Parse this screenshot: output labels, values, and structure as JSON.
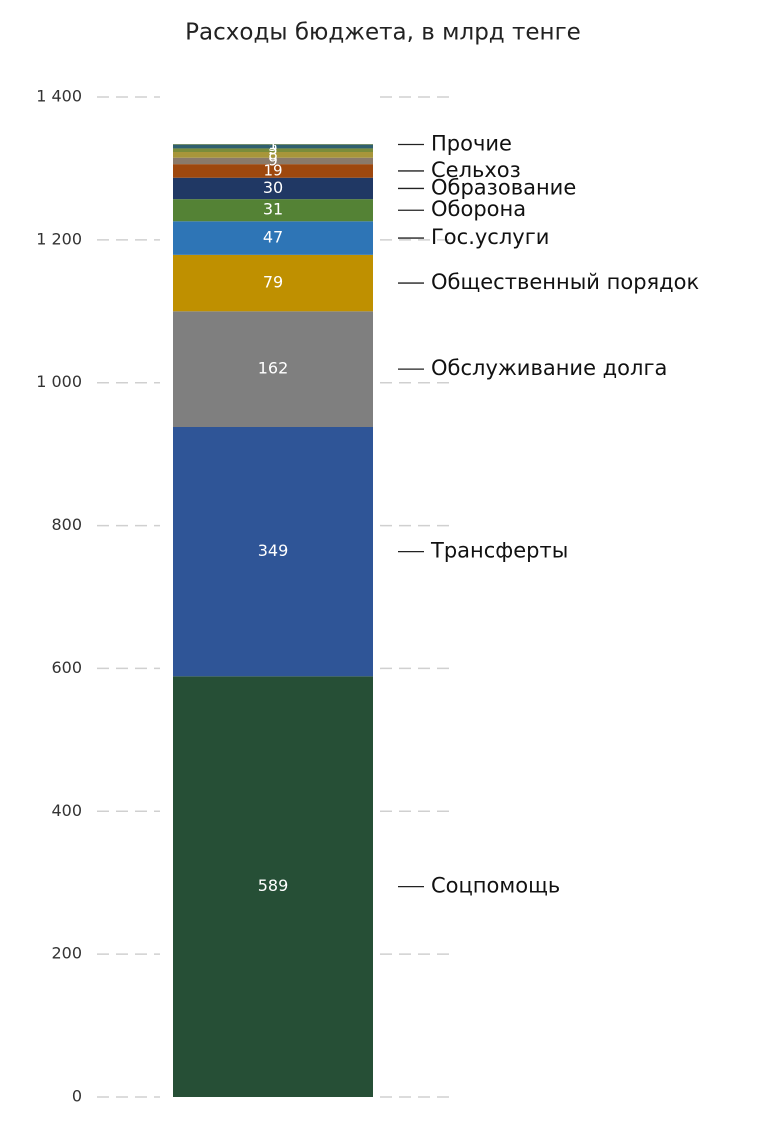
{
  "chart_data": {
    "type": "stacked-bar",
    "title": "Расходы бюджета, в млрд тенге",
    "ylim": [
      0,
      1400
    ],
    "yticks": [
      0,
      200,
      400,
      600,
      800,
      {
        "value": 1000,
        "label": "1 000"
      },
      {
        "value": 1200,
        "label": "1 200"
      },
      {
        "value": 1400,
        "label": "1 400"
      }
    ],
    "grid": true,
    "series": [
      {
        "name": "Соцпомощь",
        "color": "#264f36",
        "values": [
          589
        ]
      },
      {
        "name": "Трансферты",
        "color": "#2f5597",
        "values": [
          349
        ]
      },
      {
        "name": "Обслуживание долга",
        "color": "#7f7f7f",
        "values": [
          162
        ]
      },
      {
        "name": "Общественный порядок",
        "color": "#bf9000",
        "values": [
          79
        ]
      },
      {
        "name": "Гос.услуги",
        "color": "#2e75b6",
        "values": [
          47
        ]
      },
      {
        "name": "Оборона",
        "color": "#548235",
        "values": [
          31
        ]
      },
      {
        "name": "Образование",
        "color": "#203864",
        "values": [
          30
        ]
      },
      {
        "name": "Сельхоз",
        "color": "#9e480e",
        "values": [
          19
        ]
      },
      {
        "name": null,
        "color": "#8a7a6a",
        "values": [
          9
        ]
      },
      {
        "name": null,
        "color": "#a8963a",
        "values": [
          8
        ]
      },
      {
        "name": null,
        "color": "#7a8c3a",
        "values": [
          5
        ]
      },
      {
        "name": null,
        "color": "#2f5f6f",
        "values": [
          5
        ]
      },
      {
        "name": "Прочие",
        "color": "#4a6a3a",
        "values": [
          1
        ]
      }
    ]
  }
}
